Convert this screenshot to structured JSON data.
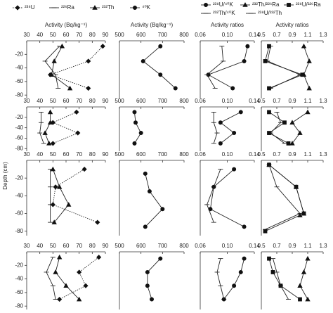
{
  "ylabel": "Depth (cm)",
  "chart_data": [
    {
      "type": "line",
      "xlabel": "Activity (Bq/kg⁻¹)",
      "xlim": [
        30,
        90
      ],
      "xticks": [
        30,
        40,
        50,
        60,
        70,
        80,
        90
      ],
      "ylim": [
        -85,
        0
      ],
      "yticks": [
        -20,
        -40,
        -60,
        -80
      ],
      "series": [
        {
          "name": "²³⁸U",
          "marker": "diamond",
          "dash": "dotted",
          "values": [
            88,
            77,
            48,
            77
          ],
          "depths": [
            -8,
            -30,
            -50,
            -70
          ]
        },
        {
          "name": "²²⁶Ra",
          "marker": "hbar",
          "dash": "solid",
          "values": [
            55,
            44,
            52,
            54
          ],
          "depths": [
            -8,
            -30,
            -50,
            -70
          ]
        },
        {
          "name": "²³²Th",
          "marker": "triangle",
          "dash": "solid",
          "values": [
            57,
            51,
            49,
            63
          ],
          "depths": [
            -8,
            -30,
            -50,
            -70
          ]
        }
      ]
    },
    {
      "type": "line",
      "xlabel": "Activity (Bq/kg⁻¹)",
      "xlim": [
        500,
        800
      ],
      "xticks": [
        500,
        600,
        700,
        800
      ],
      "ylim": [
        -85,
        0
      ],
      "series": [
        {
          "name": "⁴⁰K",
          "marker": "circle",
          "dash": "solid",
          "values": [
            690,
            610,
            690,
            760
          ],
          "depths": [
            -8,
            -30,
            -50,
            -70
          ]
        }
      ]
    },
    {
      "type": "line",
      "xlabel": "Activity ratios",
      "xlim": [
        0.06,
        0.14
      ],
      "xticks": [
        0.06,
        {
          "value": 0.1,
          "label": "0.10"
        },
        0.14
      ],
      "ylim": [
        -85,
        0
      ],
      "series": [
        {
          "name": "²³⁸U/⁴⁰K",
          "marker": "circle",
          "dash": "solid",
          "values": [
            0.13,
            0.125,
            0.072,
            0.108
          ],
          "depths": [
            -8,
            -30,
            -50,
            -70
          ]
        },
        {
          "name": "²³²Th/⁴⁰K",
          "marker": "hbar",
          "dash": "solid",
          "values": [
            0.092,
            0.094,
            0.07,
            0.082
          ],
          "depths": [
            -8,
            -30,
            -50,
            -70
          ]
        }
      ]
    },
    {
      "type": "line",
      "xlabel": "Activity ratios",
      "xlim": [
        0.5,
        1.3
      ],
      "xticks": [
        0.5,
        0.7,
        0.9,
        1.1,
        1.3
      ],
      "ylim": [
        -85,
        0
      ],
      "series": [
        {
          "name": "²³²Th/²²⁶Ra",
          "marker": "triangle",
          "dash": "solid",
          "values": [
            1.05,
            1.12,
            1.05,
            1.12
          ],
          "depths": [
            -8,
            -30,
            -50,
            -70
          ]
        },
        {
          "name": "²³⁸U/²²⁶Ra",
          "marker": "square",
          "dash": "solid",
          "values": [
            0.6,
            0.55,
            1.03,
            0.6
          ],
          "depths": [
            -8,
            -30,
            -50,
            -70
          ]
        },
        {
          "name": "²³⁸U/²³²Th",
          "marker": "hbar",
          "dash": "solid",
          "values": [
            0.62,
            0.58,
            1.0,
            0.62
          ],
          "depths": [
            -8,
            -30,
            -50,
            -70
          ]
        }
      ]
    },
    {
      "type": "line",
      "xlim": [
        30,
        90
      ],
      "xticks": [
        30,
        40,
        50,
        60,
        70,
        80,
        90
      ],
      "ylim": [
        -85,
        0
      ],
      "yticks": [
        -20,
        -40,
        -60,
        -80
      ],
      "series": [
        {
          "name": "²³⁸U",
          "marker": "diamond",
          "dash": "dotted",
          "values": [
            68,
            50,
            69,
            50
          ],
          "depths": [
            -10,
            -30,
            -50,
            -70
          ]
        },
        {
          "name": "²²⁶Ra",
          "marker": "hbar",
          "dash": "solid",
          "values": [
            41,
            41,
            40,
            43
          ],
          "depths": [
            -10,
            -30,
            -50,
            -70
          ]
        },
        {
          "name": "²³²Th",
          "marker": "triangle",
          "dash": "solid",
          "values": [
            48,
            48,
            44,
            47
          ],
          "depths": [
            -10,
            -30,
            -50,
            -70
          ]
        }
      ]
    },
    {
      "type": "line",
      "xlim": [
        500,
        800
      ],
      "xticks": [
        500,
        600,
        700,
        800
      ],
      "ylim": [
        -85,
        0
      ],
      "series": [
        {
          "name": "⁴⁰K",
          "marker": "circle",
          "dash": "solid",
          "values": [
            570,
            575,
            600,
            570
          ],
          "depths": [
            -10,
            -30,
            -50,
            -70
          ]
        }
      ]
    },
    {
      "type": "line",
      "xlim": [
        0.06,
        0.14
      ],
      "xticks": [
        0.06,
        {
          "value": 0.1,
          "label": "0.10"
        },
        0.14
      ],
      "ylim": [
        -85,
        0
      ],
      "series": [
        {
          "name": "²³⁸U/⁴⁰K",
          "marker": "circle",
          "dash": "solid",
          "values": [
            0.12,
            0.09,
            0.11,
            0.09
          ],
          "depths": [
            -10,
            -30,
            -50,
            -70
          ]
        },
        {
          "name": "²³²Th/⁴⁰K",
          "marker": "hbar",
          "dash": "solid",
          "values": [
            0.08,
            0.08,
            0.085,
            0.08
          ],
          "depths": [
            -10,
            -30,
            -50,
            -70
          ]
        }
      ]
    },
    {
      "type": "line",
      "xlim": [
        0.5,
        1.3
      ],
      "xticks": [
        0.5,
        0.7,
        0.9,
        1.1,
        1.3
      ],
      "ylim": [
        -85,
        0
      ],
      "series": [
        {
          "name": "²³²Th/²²⁶Ra",
          "marker": "triangle",
          "dash": "solid",
          "values": [
            1.1,
            0.9,
            1.0,
            0.9
          ],
          "depths": [
            -10,
            -30,
            -50,
            -70
          ]
        },
        {
          "name": "²³⁸U/²²⁶Ra",
          "marker": "square",
          "dash": "solid",
          "values": [
            0.6,
            0.8,
            0.6,
            0.85
          ],
          "depths": [
            -10,
            -30,
            -50,
            -70
          ]
        },
        {
          "name": "²³⁸U/²³²Th",
          "marker": "hbar",
          "dash": "solid",
          "values": [
            0.7,
            0.75,
            0.62,
            0.8
          ],
          "depths": [
            -10,
            -30,
            -50,
            -70
          ]
        }
      ]
    },
    {
      "type": "line",
      "xlim": [
        30,
        90
      ],
      "xticks": [
        30,
        40,
        50,
        60,
        70,
        80,
        90
      ],
      "ylim": [
        -85,
        0
      ],
      "yticks": [
        -20,
        -40,
        -60,
        -80
      ],
      "series": [
        {
          "name": "²³⁸U",
          "marker": "diamond",
          "dash": "dotted",
          "values": [
            74,
            52,
            50,
            84
          ],
          "depths": [
            -10,
            -30,
            -50,
            -70
          ]
        },
        {
          "name": "²²⁶Ra",
          "marker": "hbar",
          "dash": "solid",
          "values": [
            48,
            48,
            48,
            48
          ],
          "depths": [
            -10,
            -30,
            -50,
            -70
          ]
        },
        {
          "name": "²³²Th",
          "marker": "triangle",
          "dash": "solid",
          "values": [
            50,
            55,
            62,
            51
          ],
          "depths": [
            -10,
            -30,
            -50,
            -70
          ]
        }
      ]
    },
    {
      "type": "line",
      "xlim": [
        500,
        800
      ],
      "xticks": [
        500,
        600,
        700,
        800
      ],
      "ylim": [
        -85,
        0
      ],
      "series": [
        {
          "name": "⁴⁰K",
          "marker": "circle",
          "dash": "solid",
          "values": [
            620,
            640,
            700,
            620
          ],
          "depths": [
            -15,
            -35,
            -55,
            -75
          ]
        }
      ]
    },
    {
      "type": "line",
      "xlim": [
        0.06,
        0.14
      ],
      "xticks": [
        0.06,
        {
          "value": 0.1,
          "label": "0.10"
        },
        0.14
      ],
      "ylim": [
        -85,
        0
      ],
      "series": [
        {
          "name": "²³⁸U/⁴⁰K",
          "marker": "circle",
          "dash": "solid",
          "values": [
            0.11,
            0.08,
            0.075,
            0.125
          ],
          "depths": [
            -10,
            -30,
            -55,
            -75
          ]
        },
        {
          "name": "²³²Th/⁴⁰K",
          "marker": "hbar",
          "dash": "solid",
          "values": [
            0.09,
            0.08,
            0.07,
            0.08
          ],
          "depths": [
            -10,
            -30,
            -50,
            -70
          ]
        }
      ]
    },
    {
      "type": "line",
      "xlim": [
        0.5,
        1.3
      ],
      "xticks": [
        0.5,
        0.7,
        0.9,
        1.1,
        1.3
      ],
      "ylim": [
        -85,
        0
      ],
      "series": [
        {
          "name": "²³²Th/²²⁶Ra",
          "marker": "triangle",
          "dash": "solid",
          "values": [
            0.6,
            0.95,
            1.05,
            1.0
          ],
          "depths": [
            -5,
            -30,
            -60,
            -62
          ]
        },
        {
          "name": "²³⁸U/²²⁶Ra",
          "marker": "square",
          "dash": "solid",
          "values": [
            0.6,
            0.95,
            1.05,
            0.55
          ],
          "depths": [
            -5,
            -30,
            -60,
            -80
          ]
        },
        {
          "name": "²³⁸U/²³²Th",
          "marker": "hbar",
          "dash": "solid",
          "values": [
            0.6,
            0.7,
            1.0,
            0.55
          ],
          "depths": [
            -5,
            -30,
            -60,
            -78
          ]
        }
      ]
    },
    {
      "type": "line",
      "xlim": [
        30,
        90
      ],
      "xticks": [
        30,
        40,
        50,
        60,
        70,
        80,
        90
      ],
      "ylim": [
        -85,
        0
      ],
      "yticks": [
        -20,
        -40,
        -60,
        -80
      ],
      "series": [
        {
          "name": "²³⁸U",
          "marker": "diamond",
          "dash": "dotted",
          "values": [
            85,
            70,
            75,
            55
          ],
          "depths": [
            -8,
            -30,
            -50,
            -70
          ]
        },
        {
          "name": "²²⁶Ra",
          "marker": "hbar",
          "dash": "solid",
          "values": [
            50,
            45,
            50,
            52
          ],
          "depths": [
            -8,
            -30,
            -50,
            -70
          ]
        },
        {
          "name": "²³²Th",
          "marker": "triangle",
          "dash": "solid",
          "values": [
            55,
            52,
            60,
            70
          ],
          "depths": [
            -8,
            -30,
            -50,
            -70
          ]
        }
      ]
    },
    {
      "type": "line",
      "xlim": [
        500,
        800
      ],
      "xticks": [
        500,
        600,
        700,
        800
      ],
      "ylim": [
        -85,
        0
      ],
      "series": [
        {
          "name": "⁴⁰K",
          "marker": "circle",
          "dash": "solid",
          "values": [
            690,
            630,
            630,
            650
          ],
          "depths": [
            -10,
            -30,
            -50,
            -70
          ]
        }
      ]
    },
    {
      "type": "line",
      "xlim": [
        0.06,
        0.14
      ],
      "xticks": [
        0.06,
        {
          "value": 0.1,
          "label": "0.10"
        },
        0.14
      ],
      "ylim": [
        -85,
        0
      ],
      "series": [
        {
          "name": "²³⁸U/⁴⁰K",
          "marker": "circle",
          "dash": "solid",
          "values": [
            0.125,
            0.12,
            0.11,
            0.095
          ],
          "depths": [
            -10,
            -30,
            -50,
            -70
          ]
        },
        {
          "name": "²³²Th/⁴⁰K",
          "marker": "hbar",
          "dash": "solid",
          "values": [
            0.09,
            0.085,
            0.09,
            0.095
          ],
          "depths": [
            -10,
            -30,
            -50,
            -70
          ]
        }
      ]
    },
    {
      "type": "line",
      "xlim": [
        0.5,
        1.3
      ],
      "xticks": [
        0.5,
        0.7,
        0.9,
        1.1,
        1.3
      ],
      "ylim": [
        -85,
        0
      ],
      "series": [
        {
          "name": "²³²Th/²²⁶Ra",
          "marker": "triangle",
          "dash": "solid",
          "values": [
            1.1,
            1.05,
            1.0,
            1.1
          ],
          "depths": [
            -10,
            -30,
            -50,
            -70
          ]
        },
        {
          "name": "²³⁸U/²²⁶Ra",
          "marker": "square",
          "dash": "solid",
          "values": [
            0.6,
            0.65,
            0.75,
            1.0
          ],
          "depths": [
            -10,
            -30,
            -50,
            -70
          ]
        },
        {
          "name": "²³⁸U/²³²Th",
          "marker": "hbar",
          "dash": "solid",
          "values": [
            0.65,
            0.7,
            0.75,
            0.85
          ],
          "depths": [
            -10,
            -30,
            -50,
            -70
          ]
        }
      ]
    }
  ]
}
